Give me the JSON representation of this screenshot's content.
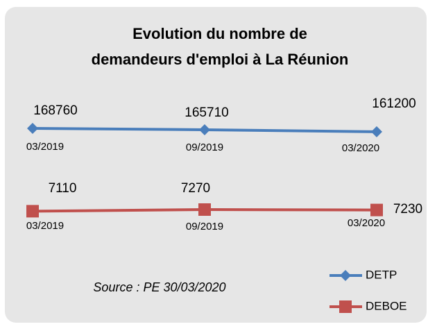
{
  "chart_data": {
    "type": "line",
    "title": [
      "Evolution du nombre de",
      "demandeurs d'emploi à La Réunion"
    ],
    "categories": [
      "03/2019",
      "09/2019",
      "03/2020"
    ],
    "series": [
      {
        "name": "DETP",
        "color": "#4a7ebb",
        "values": [
          168760,
          165710,
          161200
        ]
      },
      {
        "name": "DEBOE",
        "color": "#c0504d",
        "values": [
          7110,
          7270,
          7230
        ]
      }
    ],
    "annotation": "Source : PE 30/03/2020"
  }
}
